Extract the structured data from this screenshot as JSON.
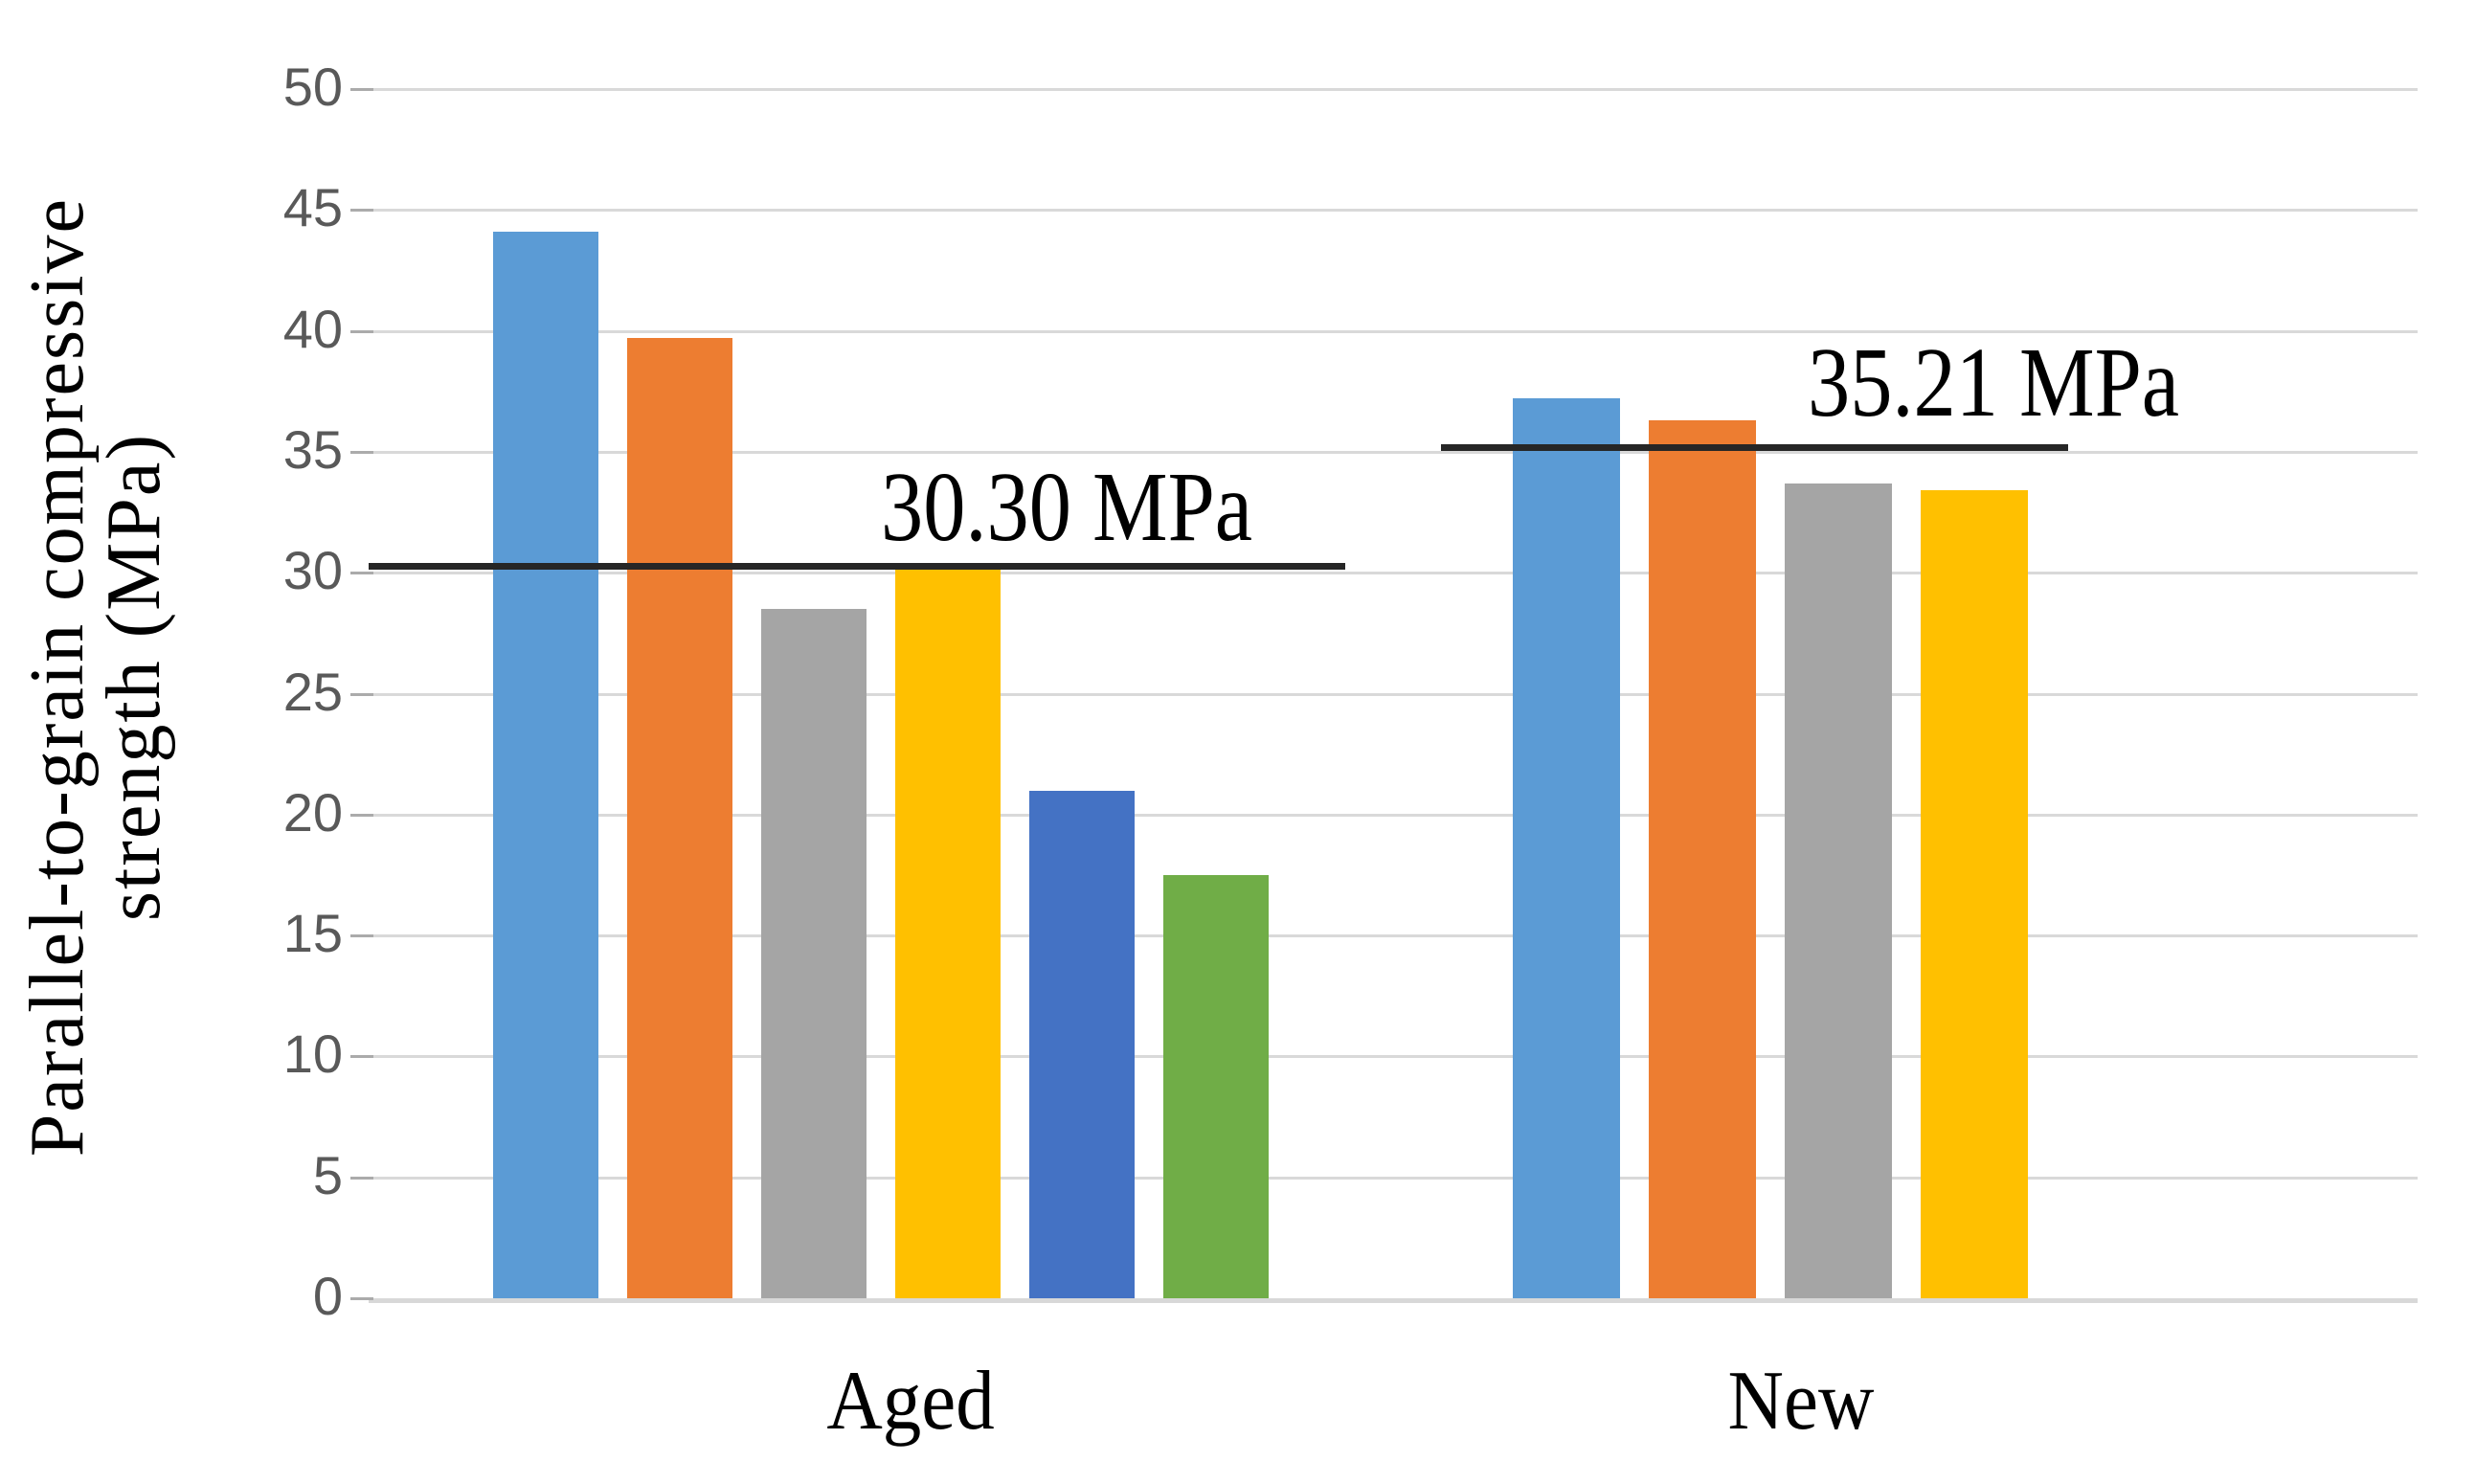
{
  "figure": {
    "background": "#FFFFFF"
  },
  "chart_data": {
    "type": "bar",
    "title": "",
    "xlabel": "",
    "ylabel": "Parallel-to-grain compressive strength (MPa)",
    "ylabel_lines": [
      "Parallel-to-grain compressive",
      "strength (MPa)"
    ],
    "categories": [
      "Aged",
      "New"
    ],
    "groups": [
      {
        "label": "Aged",
        "bars": [
          {
            "color_name": "light-blue",
            "color": "#5B9BD5",
            "value": 44.1
          },
          {
            "color_name": "orange",
            "color": "#ED7D31",
            "value": 39.7
          },
          {
            "color_name": "gray",
            "color": "#A5A5A5",
            "value": 28.5
          },
          {
            "color_name": "yellow",
            "color": "#FFC000",
            "value": 30.4
          },
          {
            "color_name": "blue",
            "color": "#4472C4",
            "value": 21.0
          },
          {
            "color_name": "green",
            "color": "#70AD47",
            "value": 17.5
          }
        ],
        "reference_line": {
          "value": 30.3,
          "label": "30.30 MPa"
        }
      },
      {
        "label": "New",
        "bars": [
          {
            "color_name": "light-blue",
            "color": "#5B9BD5",
            "value": 37.2
          },
          {
            "color_name": "orange",
            "color": "#ED7D31",
            "value": 36.3
          },
          {
            "color_name": "gray",
            "color": "#A5A5A5",
            "value": 33.7
          },
          {
            "color_name": "yellow",
            "color": "#FFC000",
            "value": 33.4
          }
        ],
        "reference_line": {
          "value": 35.21,
          "label": "35.21 MPa"
        }
      }
    ],
    "y_axis": {
      "min": 0,
      "max": 50,
      "step": 5,
      "tick_labels": [
        "0",
        "5",
        "10",
        "15",
        "20",
        "25",
        "30",
        "35",
        "40",
        "45",
        "50"
      ]
    },
    "grid": true,
    "legend": false,
    "colors": {
      "gridline": "#D9D9D9",
      "axis_line": "#D8D8D8",
      "tick_label": "#595959",
      "reference_line": "#262626",
      "text": "#000000"
    }
  }
}
